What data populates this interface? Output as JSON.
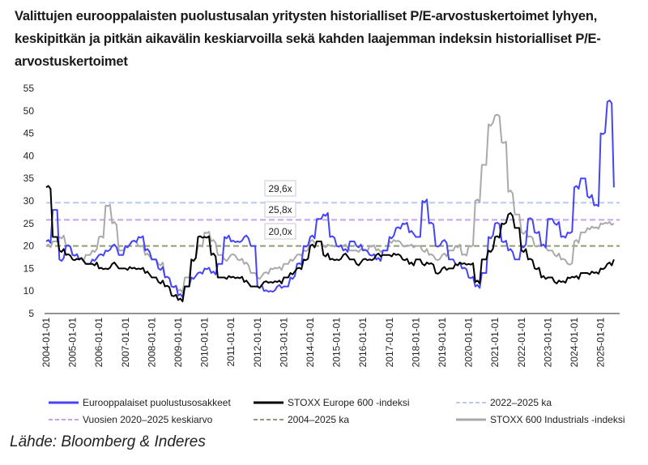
{
  "chart_data": {
    "type": "line",
    "title": "Valittujen eurooppalaisten puolustusalan yritysten historialliset P/E-arvostuskertoimet lyhyen, keskipitkän ja pitkän aikavälin keskiarvoilla sekä kahden laajemman indeksin historialliset P/E-arvostuskertoimet",
    "source": "Lähde: Bloomberg & Inderes",
    "ylim": [
      5,
      55
    ],
    "yticks": [
      "5",
      "10",
      "15",
      "20",
      "25",
      "30",
      "35",
      "40",
      "45",
      "50",
      "55"
    ],
    "xlim": [
      "2004-01-01",
      "2025-09-01"
    ],
    "xticks": [
      "2004-01-01",
      "2005-01-01",
      "2006-01-01",
      "2007-01-01",
      "2008-01-01",
      "2009-01-01",
      "2010-01-01",
      "2011-01-01",
      "2012-01-01",
      "2013-01-01",
      "2014-01-01",
      "2015-01-01",
      "2016-01-01",
      "2017-01-01",
      "2018-01-01",
      "2019-01-01",
      "2020-01-01",
      "2021-01-01",
      "2022-01-01",
      "2023-01-01",
      "2024-01-01",
      "2025-01-01"
    ],
    "grid": false,
    "legend_placement": "bottom",
    "x": [
      "2004-01",
      "2004-04",
      "2004-07",
      "2004-10",
      "2005-01",
      "2005-04",
      "2005-07",
      "2005-10",
      "2006-01",
      "2006-04",
      "2006-07",
      "2006-10",
      "2007-01",
      "2007-04",
      "2007-07",
      "2007-10",
      "2008-01",
      "2008-04",
      "2008-07",
      "2008-10",
      "2009-01",
      "2009-04",
      "2009-07",
      "2009-10",
      "2010-01",
      "2010-04",
      "2010-07",
      "2010-10",
      "2011-01",
      "2011-04",
      "2011-07",
      "2011-10",
      "2012-01",
      "2012-04",
      "2012-07",
      "2012-10",
      "2013-01",
      "2013-04",
      "2013-07",
      "2013-10",
      "2014-01",
      "2014-04",
      "2014-07",
      "2014-10",
      "2015-01",
      "2015-04",
      "2015-07",
      "2015-10",
      "2016-01",
      "2016-04",
      "2016-07",
      "2016-10",
      "2017-01",
      "2017-04",
      "2017-07",
      "2017-10",
      "2018-01",
      "2018-04",
      "2018-07",
      "2018-10",
      "2019-01",
      "2019-04",
      "2019-07",
      "2019-10",
      "2020-01",
      "2020-04",
      "2020-07",
      "2020-10",
      "2021-01",
      "2021-04",
      "2021-07",
      "2021-10",
      "2022-01",
      "2022-04",
      "2022-07",
      "2022-10",
      "2023-01",
      "2023-04",
      "2023-07",
      "2023-10",
      "2024-01",
      "2024-04",
      "2024-07",
      "2024-10",
      "2025-01",
      "2025-04",
      "2025-07"
    ],
    "series": [
      {
        "name": "STOXX 600 Industrials -indeksi",
        "color": "#aaaaaa",
        "dash": false,
        "values": [
          20,
          21,
          22,
          20,
          18,
          17,
          18,
          19,
          22,
          29,
          25,
          19,
          20,
          21,
          20,
          18,
          17,
          16,
          13,
          11,
          10,
          13,
          17,
          20,
          23,
          21,
          18,
          17,
          18,
          17,
          16,
          14,
          13,
          14,
          15,
          15,
          16,
          17,
          18,
          19,
          21,
          21,
          20,
          20,
          20,
          20,
          19,
          19,
          19,
          20,
          19,
          19,
          21,
          21,
          20,
          20,
          20,
          19,
          18,
          17,
          18,
          19,
          20,
          18,
          20,
          30,
          38,
          47,
          49,
          43,
          32,
          27,
          23,
          22,
          20,
          20,
          19,
          18,
          17,
          16,
          21,
          23,
          24,
          24,
          25,
          25,
          25
        ]
      },
      {
        "name": "Eurooppalaiset puolustusosakkeet",
        "color": "#4545f5",
        "dash": false,
        "values": [
          21,
          28,
          17,
          20,
          18,
          17,
          16,
          17,
          18,
          19,
          20,
          18,
          20,
          21,
          22,
          19,
          17,
          15,
          13,
          11,
          9,
          11,
          13,
          14,
          15,
          14,
          16,
          22,
          21,
          21,
          22,
          20,
          11,
          10,
          10,
          11,
          11,
          13,
          16,
          20,
          22,
          26,
          27,
          22,
          20,
          19,
          21,
          20,
          19,
          18,
          17,
          19,
          22,
          24,
          25,
          23,
          22,
          30,
          25,
          20,
          21,
          17,
          16,
          15,
          13,
          11,
          14,
          22,
          25,
          21,
          19,
          17,
          20,
          26,
          23,
          20,
          26,
          25,
          22,
          23,
          33,
          35,
          31,
          29,
          45,
          52,
          33
        ]
      },
      {
        "name": "STOXX Europe 600 -indeksi",
        "color": "#000000",
        "dash": false,
        "values": [
          33,
          22,
          19,
          18,
          17,
          17,
          16,
          16,
          15,
          15,
          16,
          15,
          15,
          15,
          15,
          14,
          13,
          12,
          11,
          9,
          8,
          11,
          17,
          22,
          22,
          18,
          13,
          13,
          13,
          13,
          12,
          11,
          11,
          12,
          12,
          12,
          13,
          14,
          15,
          17,
          20,
          21,
          18,
          17,
          17,
          18,
          17,
          16,
          17,
          17,
          18,
          18,
          18,
          18,
          17,
          16,
          17,
          16,
          16,
          14,
          15,
          15,
          16,
          16,
          16,
          12,
          17,
          19,
          22,
          25,
          27,
          24,
          19,
          17,
          15,
          13,
          13,
          12,
          12,
          13,
          13,
          14,
          14,
          14,
          15,
          16,
          17
        ]
      }
    ],
    "reference_lines": [
      {
        "name": "2022–2025 ka",
        "value": 29.6,
        "label": "29,6x",
        "color": "#b9c9f2"
      },
      {
        "name": "Vuosien 2020–2025 keskiarvo",
        "value": 25.8,
        "label": "25,8x",
        "color": "#c6a2ee"
      },
      {
        "name": "2004–2025 ka",
        "value": 20.0,
        "label": "20,0x",
        "color": "#8c9f72"
      }
    ],
    "legend": [
      {
        "label": "Eurooppalaiset puolustusosakkeet",
        "color": "#4545f5",
        "dash": false
      },
      {
        "label": "STOXX Europe 600 -indeksi",
        "color": "#000000",
        "dash": false
      },
      {
        "label": "2022–2025 ka",
        "color": "#b9c9f2",
        "dash": true
      },
      {
        "label": "Vuosien 2020–2025 keskiarvo",
        "color": "#c6a2ee",
        "dash": true
      },
      {
        "label": "2004–2025 ka",
        "color": "#8c9f72",
        "dash": true
      },
      {
        "label": "STOXX 600 Industrials -indeksi",
        "color": "#aaaaaa",
        "dash": false
      }
    ]
  }
}
